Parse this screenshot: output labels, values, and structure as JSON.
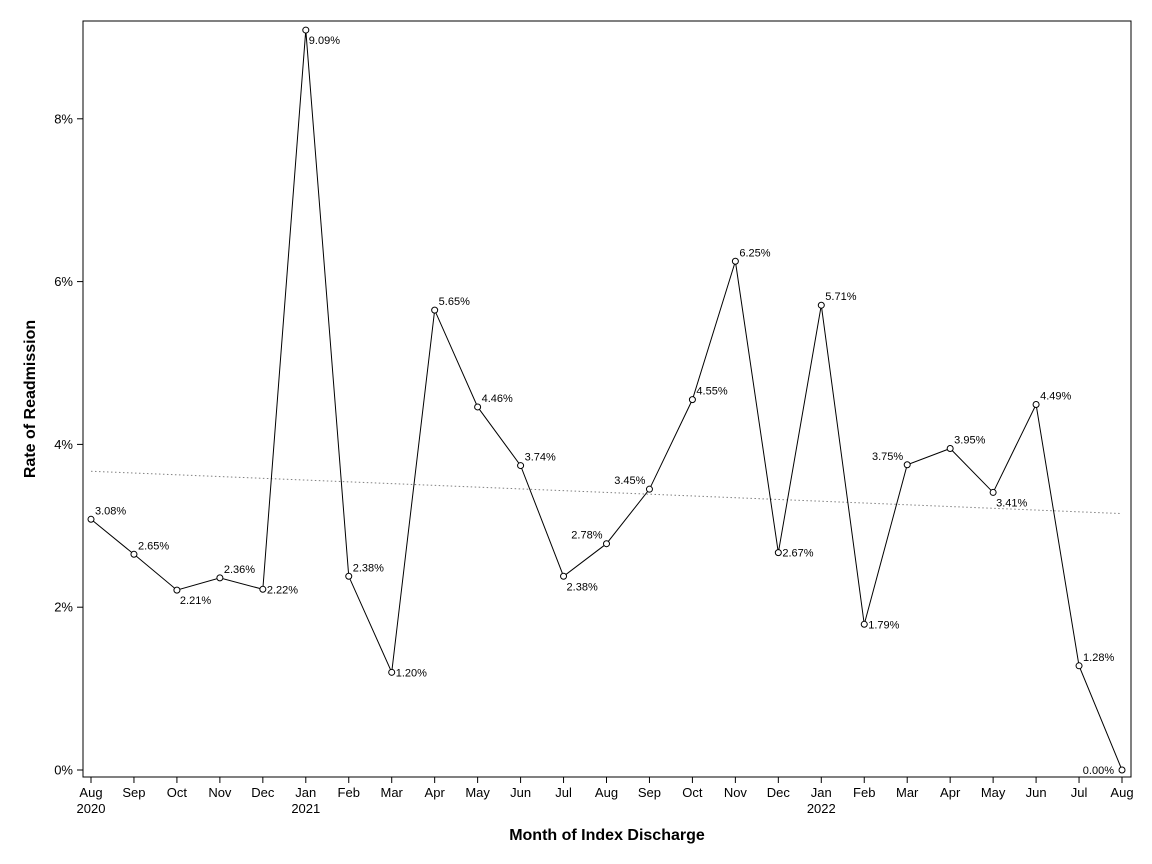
{
  "chart_data": {
    "type": "line",
    "title": "",
    "xlabel": "Month of Index Discharge",
    "ylabel": "Rate of Readmission",
    "ylim": [
      0,
      9.1
    ],
    "y_ticks": [
      {
        "value": 0,
        "label": "0%"
      },
      {
        "value": 2,
        "label": "2%"
      },
      {
        "value": 4,
        "label": "4%"
      },
      {
        "value": 6,
        "label": "6%"
      },
      {
        "value": 8,
        "label": "8%"
      }
    ],
    "grid": false,
    "legend": "none",
    "marker": "open-circle",
    "line_color": "#000000",
    "trend_color": "#808080",
    "categories": [
      "Aug",
      "Sep",
      "Oct",
      "Nov",
      "Dec",
      "Jan",
      "Feb",
      "Mar",
      "Apr",
      "May",
      "Jun",
      "Jul",
      "Aug",
      "Sep",
      "Oct",
      "Nov",
      "Dec",
      "Jan",
      "Feb",
      "Mar",
      "Apr",
      "May",
      "Jun",
      "Jul",
      "Aug"
    ],
    "year_labels": [
      {
        "index": 0,
        "label": "2020"
      },
      {
        "index": 5,
        "label": "2021"
      },
      {
        "index": 17,
        "label": "2022"
      }
    ],
    "series": [
      {
        "values": [
          3.08,
          2.65,
          2.21,
          2.36,
          2.22,
          9.09,
          2.38,
          1.2,
          5.65,
          4.46,
          3.74,
          2.38,
          2.78,
          3.45,
          4.55,
          6.25,
          2.67,
          5.71,
          1.79,
          3.75,
          3.95,
          3.41,
          4.49,
          1.28,
          0.0
        ],
        "labels": [
          "3.08%",
          "2.65%",
          "2.21%",
          "2.36%",
          "2.22%",
          "9.09%",
          "2.38%",
          "1.20%",
          "5.65%",
          "4.46%",
          "3.74%",
          "2.38%",
          "2.78%",
          "3.45%",
          "4.55%",
          "6.25%",
          "2.67%",
          "5.71%",
          "1.79%",
          "3.75%",
          "3.95%",
          "3.41%",
          "4.49%",
          "1.28%",
          "0.00%"
        ],
        "label_positions": [
          "above-right",
          "above-right",
          "below-right",
          "above-right",
          "right",
          "below-right",
          "above-right",
          "right",
          "above-right",
          "above-right",
          "above-right",
          "below-right",
          "above-left",
          "above-left",
          "above-right",
          "above-right",
          "right",
          "above-right",
          "right",
          "above-left",
          "above-right",
          "below-right",
          "above-right",
          "above-right",
          "left"
        ]
      }
    ],
    "trend_line": {
      "style": "dotted",
      "start_value": 3.67,
      "end_value": 3.15
    }
  }
}
